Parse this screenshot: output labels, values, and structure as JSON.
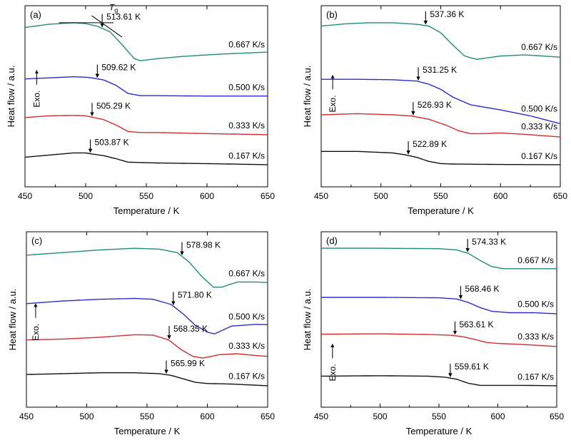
{
  "chart_data": [
    {
      "type": "line",
      "panel_label": "(a)",
      "xlabel": "Temperature / K",
      "ylabel": "Heat flow / a.u.",
      "xlim": [
        450,
        650
      ],
      "xticks": [
        450,
        500,
        550,
        600,
        650
      ],
      "annotations": {
        "exo": "Exo.",
        "tg_symbol": "T",
        "tg_subscript": "g"
      },
      "series": [
        {
          "name": "0.667 K/s",
          "color": "#1f8a7d",
          "tg_label": "513.61 K",
          "tg": 513.61,
          "x": [
            450,
            470,
            490,
            500,
            510,
            520,
            530,
            540,
            545,
            560,
            580,
            600,
            620,
            650
          ],
          "y": [
            8.4,
            8.55,
            8.62,
            8.58,
            8.45,
            8.2,
            7.6,
            6.95,
            6.85,
            6.95,
            7.05,
            7.12,
            7.18,
            7.25
          ]
        },
        {
          "name": "0.500 K/s",
          "color": "#2b2bcf",
          "tg_label": "509.62 K",
          "tg": 509.62,
          "x": [
            450,
            470,
            490,
            500,
            505,
            515,
            525,
            535,
            545,
            560,
            600,
            650
          ],
          "y": [
            6.0,
            6.05,
            6.1,
            6.08,
            6.05,
            5.95,
            5.7,
            5.32,
            5.22,
            5.22,
            5.2,
            5.2
          ]
        },
        {
          "name": "0.333 K/s",
          "color": "#d42a2a",
          "tg_label": "505.29 K",
          "tg": 505.29,
          "x": [
            450,
            470,
            490,
            500,
            505,
            515,
            525,
            535,
            545,
            560,
            600,
            650
          ],
          "y": [
            4.2,
            4.28,
            4.3,
            4.28,
            4.22,
            4.1,
            3.85,
            3.55,
            3.5,
            3.5,
            3.45,
            3.4
          ]
        },
        {
          "name": "0.167 K/s",
          "color": "#111111",
          "tg_label": "503.87 K",
          "tg": 503.87,
          "x": [
            450,
            470,
            490,
            500,
            505,
            515,
            525,
            535,
            545,
            560,
            600,
            650
          ],
          "y": [
            2.35,
            2.45,
            2.55,
            2.55,
            2.5,
            2.42,
            2.28,
            2.12,
            2.1,
            2.08,
            2.05,
            2.0
          ]
        }
      ]
    },
    {
      "type": "line",
      "panel_label": "(b)",
      "xlabel": "Temperature / K",
      "ylabel": "Heat flow / a.u.",
      "xlim": [
        450,
        650
      ],
      "xticks": [
        450,
        500,
        550,
        600,
        650
      ],
      "annotations": {
        "exo": "Exo."
      },
      "series": [
        {
          "name": "0.667 K/s",
          "color": "#1f8a7d",
          "tg_label": "537.36 K",
          "tg": 537.36,
          "x": [
            450,
            470,
            490,
            510,
            530,
            540,
            550,
            560,
            570,
            580,
            600,
            620,
            650
          ],
          "y": [
            8.6,
            8.7,
            8.75,
            8.75,
            8.68,
            8.6,
            8.3,
            7.75,
            7.25,
            7.1,
            7.25,
            7.3,
            7.2
          ]
        },
        {
          "name": "0.500 K/s",
          "color": "#2b2bcf",
          "tg_label": "531.25 K",
          "tg": 531.25,
          "x": [
            450,
            480,
            510,
            530,
            540,
            550,
            560,
            575,
            600,
            625,
            650
          ],
          "y": [
            6.2,
            6.2,
            6.18,
            6.12,
            5.98,
            5.75,
            5.4,
            5.05,
            4.82,
            4.55,
            4.2
          ]
        },
        {
          "name": "0.333 K/s",
          "color": "#d42a2a",
          "tg_label": "526.93 K",
          "tg": 526.93,
          "x": [
            450,
            480,
            510,
            525,
            540,
            555,
            565,
            575,
            585,
            600,
            620,
            650
          ],
          "y": [
            4.6,
            4.65,
            4.6,
            4.55,
            4.4,
            4.12,
            3.88,
            3.75,
            3.75,
            3.78,
            3.72,
            3.6
          ]
        },
        {
          "name": "0.167 K/s",
          "color": "#111111",
          "tg_label": "522.89 K",
          "tg": 522.89,
          "x": [
            450,
            480,
            510,
            520,
            530,
            540,
            550,
            560,
            600,
            650
          ],
          "y": [
            2.95,
            2.95,
            2.88,
            2.8,
            2.68,
            2.5,
            2.4,
            2.38,
            2.36,
            2.35
          ]
        }
      ]
    },
    {
      "type": "line",
      "panel_label": "(c)",
      "xlabel": "Temperature / K",
      "ylabel": "Heat flow / a.u.",
      "xlim": [
        450,
        650
      ],
      "xticks": [
        450,
        500,
        550,
        600,
        650
      ],
      "annotations": {
        "exo": "Exo."
      },
      "series": [
        {
          "name": "0.667 K/s",
          "color": "#1f8a7d",
          "tg_label": "578.98 K",
          "tg": 578.98,
          "x": [
            450,
            480,
            510,
            540,
            560,
            575,
            585,
            595,
            605,
            612,
            625,
            640,
            650
          ],
          "y": [
            8.8,
            8.95,
            9.1,
            9.2,
            9.15,
            8.95,
            8.4,
            7.6,
            6.95,
            6.95,
            7.25,
            7.25,
            7.22
          ]
        },
        {
          "name": "0.500 K/s",
          "color": "#2b2bcf",
          "tg_label": "571.80 K",
          "tg": 571.8,
          "x": [
            450,
            480,
            510,
            540,
            555,
            570,
            580,
            590,
            600,
            606,
            620,
            640,
            650
          ],
          "y": [
            6.0,
            6.15,
            6.25,
            6.3,
            6.25,
            5.95,
            5.4,
            4.75,
            4.35,
            4.25,
            4.7,
            4.8,
            4.78
          ]
        },
        {
          "name": "0.333 K/s",
          "color": "#d42a2a",
          "tg_label": "568.35 K",
          "tg": 568.35,
          "x": [
            450,
            480,
            510,
            540,
            555,
            568,
            578,
            588,
            596,
            610,
            625,
            640,
            650
          ],
          "y": [
            3.9,
            3.95,
            4.05,
            4.2,
            4.18,
            3.9,
            3.35,
            2.95,
            2.85,
            3.05,
            3.1,
            3.0,
            2.95
          ]
        },
        {
          "name": "0.167 K/s",
          "color": "#111111",
          "tg_label": "565.99 K",
          "tg": 565.99,
          "x": [
            450,
            480,
            510,
            540,
            560,
            570,
            580,
            590,
            600,
            620,
            650
          ],
          "y": [
            1.9,
            1.95,
            2.0,
            2.0,
            1.95,
            1.85,
            1.65,
            1.45,
            1.38,
            1.35,
            1.25
          ]
        }
      ]
    },
    {
      "type": "line",
      "panel_label": "(d)",
      "xlabel": "Temperature / K",
      "ylabel": "Heat flow / a.u.",
      "xlim": [
        450,
        650
      ],
      "xticks": [
        450,
        500,
        550,
        600,
        650
      ],
      "annotations": {
        "exo": "Exo."
      },
      "series": [
        {
          "name": "0.667 K/s",
          "color": "#1f8a7d",
          "tg_label": "574.33 K",
          "tg": 574.33,
          "x": [
            450,
            500,
            550,
            565,
            575,
            585,
            595,
            605,
            620,
            650
          ],
          "y": [
            8.2,
            8.2,
            8.18,
            8.12,
            7.95,
            7.6,
            7.3,
            7.2,
            7.2,
            7.2
          ]
        },
        {
          "name": "0.500 K/s",
          "color": "#2b2bcf",
          "tg_label": "568.46 K",
          "tg": 568.46,
          "x": [
            450,
            500,
            550,
            565,
            575,
            585,
            595,
            610,
            630,
            650
          ],
          "y": [
            5.8,
            5.8,
            5.78,
            5.72,
            5.55,
            5.3,
            5.12,
            5.05,
            5.05,
            5.0
          ]
        },
        {
          "name": "0.333 K/s",
          "color": "#d42a2a",
          "tg_label": "563.61 K",
          "tg": 563.61,
          "x": [
            450,
            500,
            545,
            560,
            570,
            580,
            590,
            600,
            620,
            650
          ],
          "y": [
            4.0,
            4.02,
            3.98,
            3.95,
            3.88,
            3.75,
            3.6,
            3.55,
            3.5,
            3.4
          ]
        },
        {
          "name": "0.167 K/s",
          "color": "#111111",
          "tg_label": "559.61 K",
          "tg": 559.61,
          "x": [
            450,
            500,
            540,
            555,
            565,
            575,
            585,
            600,
            620,
            650
          ],
          "y": [
            1.95,
            1.97,
            1.95,
            1.9,
            1.8,
            1.6,
            1.5,
            1.5,
            1.5,
            1.48
          ]
        }
      ]
    }
  ]
}
